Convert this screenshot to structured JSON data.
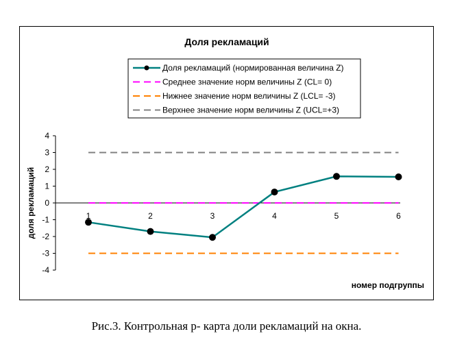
{
  "caption": "Рис.3. Контрольная p- карта доли рекламаций на окна.",
  "chart_data": {
    "type": "line",
    "title": "Доля рекламаций",
    "xlabel": "номер подгруппы",
    "ylabel": "доля рекламаций",
    "x": [
      1,
      2,
      3,
      4,
      5,
      6
    ],
    "xticks": [
      "1",
      "2",
      "3",
      "4",
      "5",
      "6"
    ],
    "yticks": [
      "4",
      "3",
      "2",
      "1",
      "0",
      "-1",
      "-2",
      "-3",
      "-4"
    ],
    "ylim": [
      -4,
      4
    ],
    "grid": false,
    "legend_position": "top",
    "series": [
      {
        "name": "Доля рекламаций (нормированная величина Z)",
        "values": [
          -1.15,
          -1.7,
          -2.05,
          0.65,
          1.58,
          1.55
        ],
        "color": "#008080",
        "style": "solid-markers"
      },
      {
        "name": "Среднее значение норм величины Z (CL= 0)",
        "values": [
          0,
          0,
          0,
          0,
          0,
          0
        ],
        "color": "#ff00ff",
        "style": "dashed"
      },
      {
        "name": "Нижнее значение норм величины Z (LCL= -3)",
        "values": [
          -3,
          -3,
          -3,
          -3,
          -3,
          -3
        ],
        "color": "#ff8000",
        "style": "dashed"
      },
      {
        "name": "Верхнее значение норм величины Z  (UCL=+3)",
        "values": [
          3,
          3,
          3,
          3,
          3,
          3
        ],
        "color": "#808080",
        "style": "dashed"
      }
    ]
  }
}
